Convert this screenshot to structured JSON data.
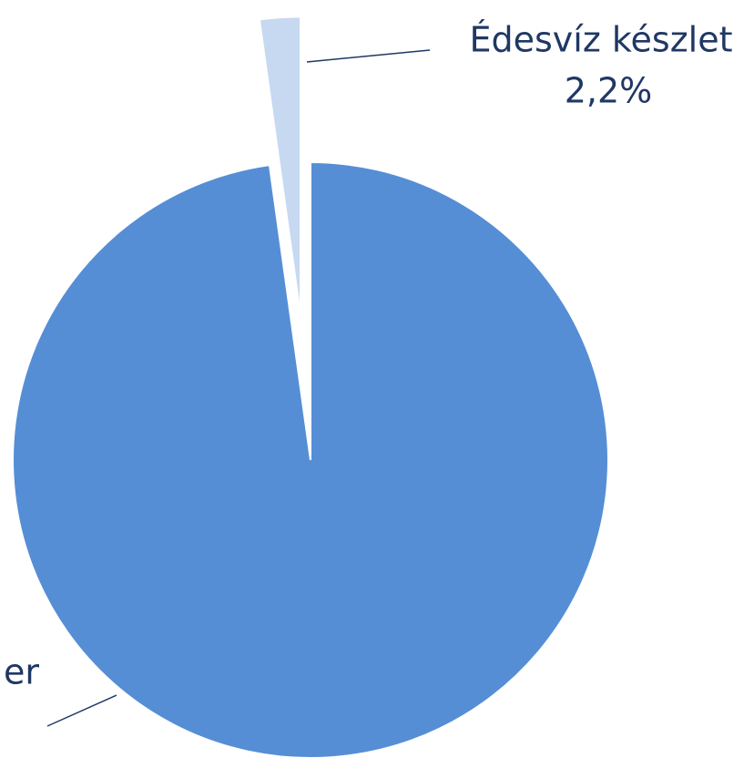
{
  "chart_data": {
    "type": "pie",
    "categories": [
      "er",
      "Édesvíz készlet"
    ],
    "values": [
      97.8,
      2.2
    ],
    "value_labels": [
      null,
      "2,2%"
    ],
    "colors": [
      "#558ed5",
      "#c6d9f1"
    ],
    "exploded": [
      false,
      true
    ]
  }
}
